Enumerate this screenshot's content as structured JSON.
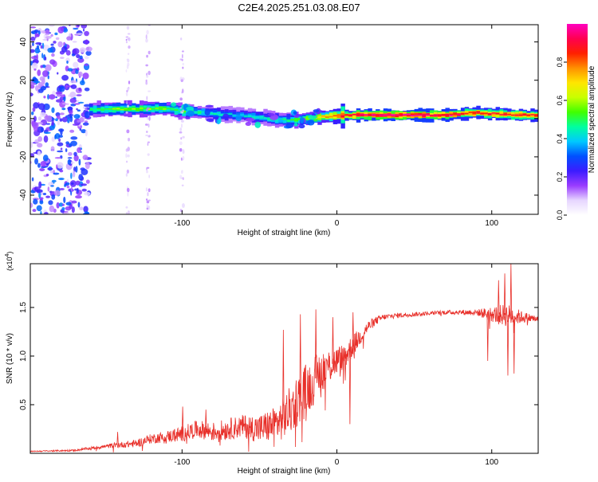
{
  "title": "C2E4.2025.251.03.08.E07",
  "colors": {
    "axis": "#000000",
    "snr_line": "#e8302a",
    "background": "#ffffff"
  },
  "chart_data": [
    {
      "type": "heatmap",
      "xlabel": "Height of straight line (km)",
      "ylabel": "Frequency (Hz)",
      "xlim": [
        -198,
        130
      ],
      "ylim": [
        -50,
        49
      ],
      "x_ticks": [
        {
          "value": -100,
          "label": "-100"
        },
        {
          "value": 0,
          "label": "0"
        },
        {
          "value": 100,
          "label": "100"
        }
      ],
      "y_ticks": [
        {
          "value": -40,
          "label": "-40"
        },
        {
          "value": -20,
          "label": "-20"
        },
        {
          "value": 0,
          "label": "0"
        },
        {
          "value": 20,
          "label": "20"
        },
        {
          "value": 40,
          "label": "40"
        }
      ],
      "colorbar": {
        "label": "Normalized spectral amplitude",
        "range": [
          0,
          1
        ],
        "ticks": [
          {
            "value": 0.0,
            "label": "0.0"
          },
          {
            "value": 0.2,
            "label": "0.2"
          },
          {
            "value": 0.4,
            "label": "0.4"
          },
          {
            "value": 0.6,
            "label": "0.6"
          },
          {
            "value": 0.8,
            "label": "0.8"
          }
        ],
        "stops": [
          "#ffffff",
          "#e6d6ff",
          "#9a3cff",
          "#3c1cff",
          "#0050ff",
          "#00c8ff",
          "#00ffa0",
          "#40ff00",
          "#c8ff00",
          "#ffe600",
          "#ff9000",
          "#ff2000",
          "#ff0050",
          "#ff00c0"
        ]
      },
      "ridge": [
        {
          "x": -160,
          "f": 4.6,
          "w": 1.6,
          "a": 0.45
        },
        {
          "x": -150,
          "f": 4.9,
          "w": 1.6,
          "a": 0.52
        },
        {
          "x": -140,
          "f": 5.0,
          "w": 1.8,
          "a": 0.55
        },
        {
          "x": -130,
          "f": 5.0,
          "w": 1.8,
          "a": 0.55
        },
        {
          "x": -120,
          "f": 5.1,
          "w": 2.0,
          "a": 0.55
        },
        {
          "x": -110,
          "f": 5.2,
          "w": 2.2,
          "a": 0.52
        },
        {
          "x": -100,
          "f": 3.5,
          "w": 2.8,
          "a": 0.48
        },
        {
          "x": -90,
          "f": 3.5,
          "w": 3.2,
          "a": 0.45
        },
        {
          "x": -80,
          "f": 2.5,
          "w": 3.4,
          "a": 0.42
        },
        {
          "x": -70,
          "f": 2.0,
          "w": 3.0,
          "a": 0.4
        },
        {
          "x": -60,
          "f": 1.5,
          "w": 3.0,
          "a": 0.4
        },
        {
          "x": -50,
          "f": 0.5,
          "w": 3.0,
          "a": 0.42
        },
        {
          "x": -40,
          "f": -0.5,
          "w": 3.0,
          "a": 0.45
        },
        {
          "x": -30,
          "f": -1.0,
          "w": 2.6,
          "a": 0.48
        },
        {
          "x": -20,
          "f": 0.0,
          "w": 2.0,
          "a": 0.6
        },
        {
          "x": -10,
          "f": 1.0,
          "w": 1.6,
          "a": 0.7
        },
        {
          "x": 0,
          "f": 1.5,
          "w": 1.3,
          "a": 0.8
        },
        {
          "x": 10,
          "f": 1.8,
          "w": 1.2,
          "a": 0.9
        },
        {
          "x": 30,
          "f": 1.8,
          "w": 1.2,
          "a": 0.95
        },
        {
          "x": 50,
          "f": 1.8,
          "w": 1.2,
          "a": 0.95
        },
        {
          "x": 70,
          "f": 1.8,
          "w": 1.2,
          "a": 0.92
        },
        {
          "x": 85,
          "f": 3.0,
          "w": 1.5,
          "a": 0.85
        },
        {
          "x": 100,
          "f": 2.5,
          "w": 1.4,
          "a": 0.85
        },
        {
          "x": 115,
          "f": 1.8,
          "w": 1.3,
          "a": 0.85
        },
        {
          "x": 130,
          "f": 1.8,
          "w": 1.3,
          "a": 0.85
        }
      ],
      "noise_region": {
        "x_from": -198,
        "x_to": -160
      }
    },
    {
      "type": "line",
      "xlabel": "Height of straight line (km)",
      "ylabel": "SNR (10 * v/v)",
      "scale_label": "(x10",
      "scale_exponent": "4",
      "scale_suffix": ")",
      "xlim": [
        -198,
        130
      ],
      "ylim": [
        0,
        1.95
      ],
      "x_ticks": [
        {
          "value": -100,
          "label": "-100"
        },
        {
          "value": 0,
          "label": "0"
        },
        {
          "value": 100,
          "label": "100"
        }
      ],
      "y_ticks": [
        {
          "value": 0.5,
          "label": "0.5"
        },
        {
          "value": 1.0,
          "label": "1.0"
        },
        {
          "value": 1.5,
          "label": "1.5"
        }
      ],
      "series": [
        {
          "name": "SNR",
          "trend": {
            "x": [
              -198,
              -170,
              -160,
              -145,
              -130,
              -120,
              -110,
              -100,
              -90,
              -80,
              -70,
              -60,
              -50,
              -40,
              -35,
              -30,
              -25,
              -20,
              -15,
              -10,
              -5,
              0,
              5,
              10,
              15,
              20,
              25,
              30,
              40,
              50,
              60,
              70,
              80,
              90,
              100,
              110,
              120,
              130
            ],
            "y": [
              0.02,
              0.03,
              0.05,
              0.08,
              0.1,
              0.15,
              0.17,
              0.2,
              0.25,
              0.22,
              0.25,
              0.28,
              0.25,
              0.3,
              0.35,
              0.45,
              0.55,
              0.65,
              0.75,
              0.85,
              0.9,
              0.95,
              1.0,
              1.1,
              1.2,
              1.3,
              1.36,
              1.4,
              1.42,
              1.43,
              1.44,
              1.45,
              1.45,
              1.45,
              1.43,
              1.42,
              1.4,
              1.38
            ]
          },
          "noise": {
            "x": [
              -198,
              -170,
              -150,
              -130,
              -110,
              -100,
              -80,
              -60,
              -50,
              -40,
              -30,
              -20,
              -10,
              0,
              10,
              20,
              30,
              60,
              90,
              100,
              110,
              120,
              130
            ],
            "amp": [
              0.005,
              0.01,
              0.02,
              0.04,
              0.06,
              0.08,
              0.1,
              0.12,
              0.15,
              0.18,
              0.25,
              0.28,
              0.22,
              0.15,
              0.12,
              0.06,
              0.03,
              0.02,
              0.03,
              0.08,
              0.12,
              0.06,
              0.03
            ]
          },
          "spikes": [
            {
              "x": -142,
              "y": 0.22
            },
            {
              "x": -100,
              "y": 0.48
            },
            {
              "x": -85,
              "y": 0.45
            },
            {
              "x": -35,
              "y": 1.27
            },
            {
              "x": -24,
              "y": 1.43
            },
            {
              "x": -14,
              "y": 1.48
            },
            {
              "x": -3,
              "y": 1.4
            },
            {
              "x": 5,
              "y": 0.75
            },
            {
              "x": 8,
              "y": 0.3
            },
            {
              "x": 10,
              "y": 1.45
            },
            {
              "x": 97,
              "y": 0.95
            },
            {
              "x": 104,
              "y": 1.78
            },
            {
              "x": 108,
              "y": 1.85
            },
            {
              "x": 110,
              "y": 0.8
            },
            {
              "x": 112,
              "y": 1.95
            },
            {
              "x": 114,
              "y": 0.82
            }
          ]
        }
      ]
    }
  ]
}
